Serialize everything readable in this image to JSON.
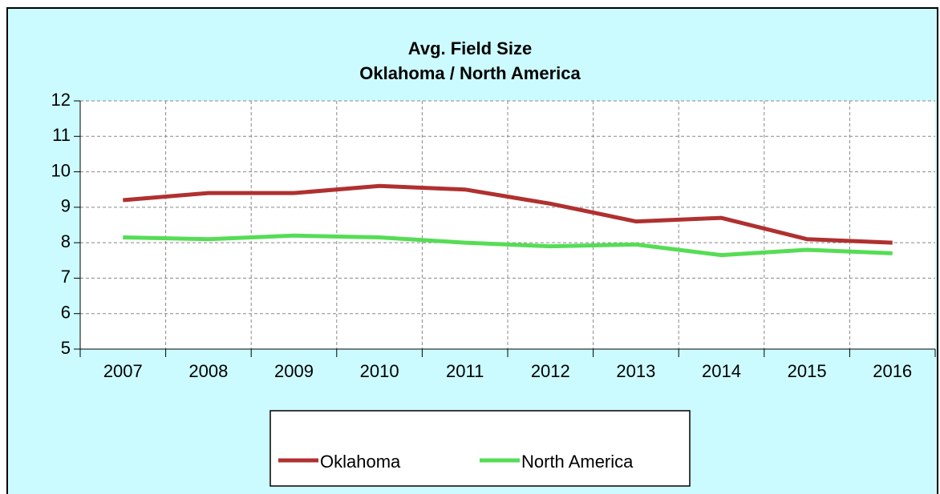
{
  "chart_data": {
    "type": "line",
    "title": "Avg. Field Size",
    "subtitle": "Oklahoma / North America",
    "categories": [
      "2007",
      "2008",
      "2009",
      "2010",
      "2011",
      "2012",
      "2013",
      "2014",
      "2015",
      "2016"
    ],
    "series": [
      {
        "name": "Oklahoma",
        "color": "#b03030",
        "values": [
          9.2,
          9.4,
          9.4,
          9.6,
          9.5,
          9.1,
          8.6,
          8.7,
          8.1,
          8.0
        ]
      },
      {
        "name": "North America",
        "color": "#55dd55",
        "values": [
          8.15,
          8.1,
          8.2,
          8.15,
          8.0,
          7.9,
          7.95,
          7.65,
          7.8,
          7.7
        ]
      }
    ],
    "ylim": [
      5,
      12
    ],
    "yticks": [
      5,
      6,
      7,
      8,
      9,
      10,
      11,
      12
    ],
    "grid": true
  }
}
